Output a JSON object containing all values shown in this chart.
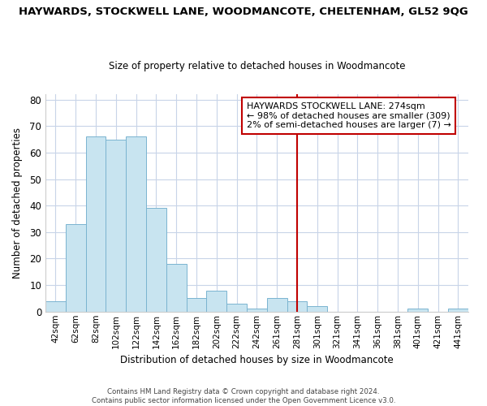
{
  "title": "HAYWARDS, STOCKWELL LANE, WOODMANCOTE, CHELTENHAM, GL52 9QG",
  "subtitle": "Size of property relative to detached houses in Woodmancote",
  "xlabel": "Distribution of detached houses by size in Woodmancote",
  "ylabel": "Number of detached properties",
  "bar_labels": [
    "42sqm",
    "62sqm",
    "82sqm",
    "102sqm",
    "122sqm",
    "142sqm",
    "162sqm",
    "182sqm",
    "202sqm",
    "222sqm",
    "242sqm",
    "261sqm",
    "281sqm",
    "301sqm",
    "321sqm",
    "341sqm",
    "361sqm",
    "381sqm",
    "401sqm",
    "421sqm",
    "441sqm"
  ],
  "bar_heights": [
    4,
    33,
    66,
    65,
    66,
    39,
    18,
    5,
    8,
    3,
    1,
    5,
    4,
    2,
    0,
    0,
    0,
    0,
    1,
    0,
    1
  ],
  "bar_color": "#c8e4f0",
  "bar_edge_color": "#7ab4d0",
  "vline_index": 12,
  "vline_color": "#c00000",
  "ylim": [
    0,
    82
  ],
  "yticks": [
    0,
    10,
    20,
    30,
    40,
    50,
    60,
    70,
    80
  ],
  "annotation_box_text": "HAYWARDS STOCKWELL LANE: 274sqm\n← 98% of detached houses are smaller (309)\n2% of semi-detached houses are larger (7) →",
  "footer_text": "Contains HM Land Registry data © Crown copyright and database right 2024.\nContains public sector information licensed under the Open Government Licence v3.0.",
  "background_color": "#ffffff",
  "grid_color": "#c8d4e8"
}
